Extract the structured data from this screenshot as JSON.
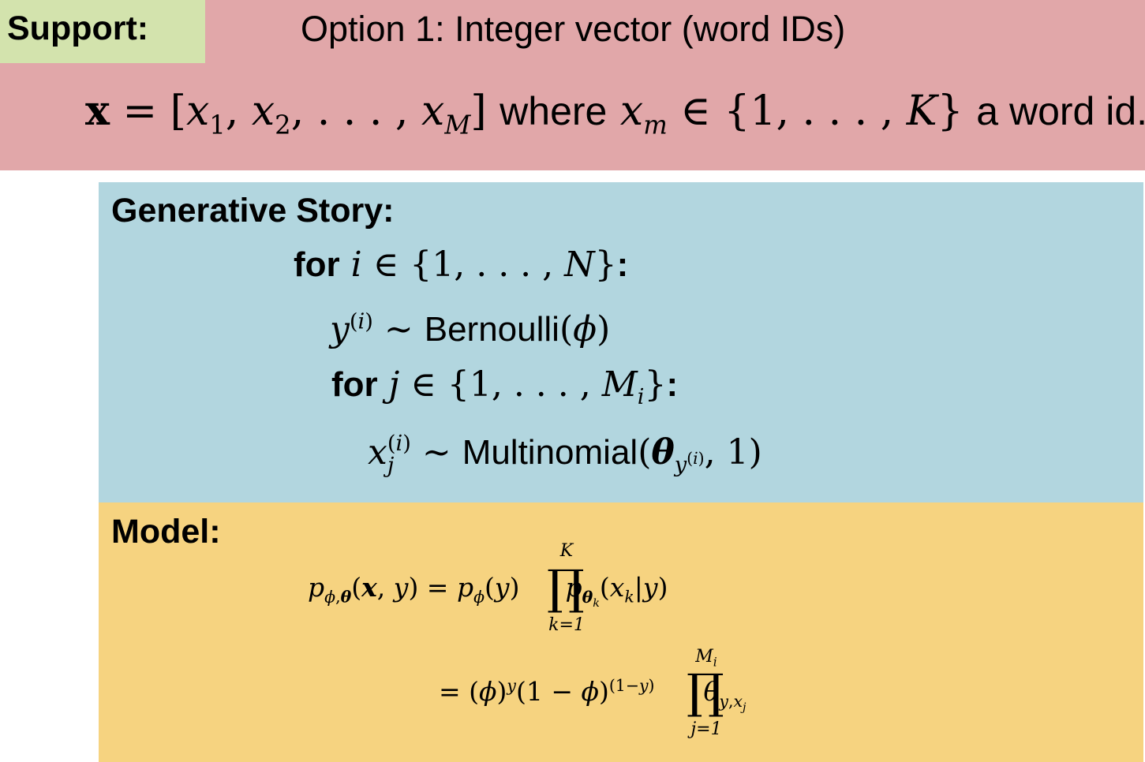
{
  "support": {
    "label": "Support:",
    "option_title": "Option 1: Integer vector (word IDs)",
    "where_text": "where",
    "trailing_text": "a word id."
  },
  "generative_story": {
    "title": "Generative Story:",
    "for_keyword": "for",
    "bernoulli_label": "Bernoulli",
    "multinomial_label": "Multinomial"
  },
  "model": {
    "title": "Model:",
    "product_upper_1": "K",
    "product_lower_1": "k=1",
    "product_upper_2": "M",
    "product_lower_2": "j=1"
  },
  "colors": {
    "support_band": "#e1a7a9",
    "support_tag": "#d3e3ad",
    "generative_band": "#b2d6df",
    "model_band": "#f6d380"
  }
}
